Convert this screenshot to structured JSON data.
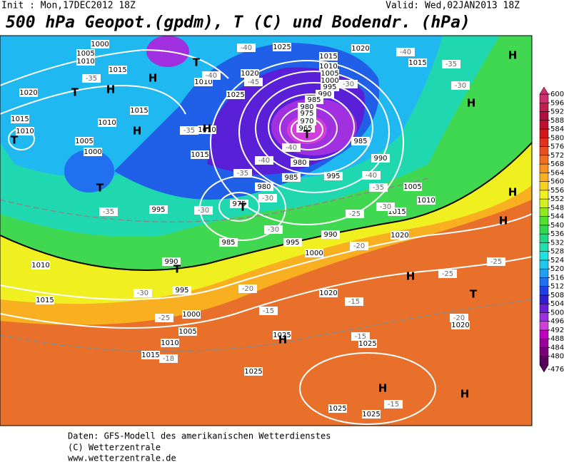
{
  "header": {
    "init": "Init : Mon,17DEC2012  18Z",
    "valid": "Valid: Wed,02JAN2013  18Z",
    "title": "500 hPa Geopot.(gpdm), T (C) und Bodendr. (hPa)"
  },
  "map": {
    "pressure_labels": [
      1000,
      1005,
      1010,
      1015,
      1010,
      1020,
      1025,
      1020,
      1025,
      1015,
      1020,
      1015,
      1010,
      1005,
      1000,
      995,
      990,
      985,
      980,
      975,
      970,
      965,
      1015,
      1010,
      1005,
      1000,
      1010,
      1015,
      1015,
      1010,
      985,
      990,
      995,
      985,
      980,
      980,
      1005,
      1010,
      1015,
      995,
      975,
      985,
      995,
      990,
      1000,
      1020,
      990,
      1010,
      1015,
      995,
      1000,
      1005,
      1010,
      1015,
      1020,
      1025,
      1025,
      1025,
      1025,
      1025,
      1020
    ],
    "temperature_labels": [
      -40,
      -35,
      -40,
      -45,
      -30,
      -40,
      -35,
      -30,
      -35,
      -40,
      -40,
      -35,
      -40,
      -35,
      -30,
      -30,
      -25,
      -30,
      -35,
      -30,
      -20,
      -20,
      -25,
      -25,
      -30,
      -15,
      -15,
      -20,
      -25,
      -18,
      -15,
      -15
    ],
    "centers": [
      "T",
      "T",
      "H",
      "H",
      "H",
      "T",
      "H",
      "T",
      "T",
      "T",
      "T",
      "H",
      "T",
      "H",
      "H",
      "H",
      "H",
      "H",
      "H",
      "H"
    ]
  },
  "colorbar": {
    "ticks": [
      476,
      480,
      484,
      488,
      492,
      496,
      500,
      504,
      508,
      512,
      516,
      520,
      524,
      528,
      532,
      536,
      540,
      544,
      548,
      552,
      556,
      560,
      564,
      568,
      572,
      576,
      580,
      584,
      588,
      592,
      596,
      600
    ],
    "colors": [
      "#5a005a",
      "#7a007a",
      "#9a009a",
      "#c000c0",
      "#d040d8",
      "#9a30e0",
      "#6a20d8",
      "#3020d0",
      "#2040e8",
      "#2070f0",
      "#20a0f0",
      "#20c8f0",
      "#20e0e0",
      "#20e0b0",
      "#20d880",
      "#30d850",
      "#50e030",
      "#90e820",
      "#d0f020",
      "#f0f020",
      "#f8d020",
      "#f8b020",
      "#f89020",
      "#f07020",
      "#e85020",
      "#e03020",
      "#d01818",
      "#c01030",
      "#b01040",
      "#c02050",
      "#d03070"
    ]
  },
  "footer": [
    "Daten: GFS-Modell des amerikanischen Wetterdienstes",
    "(C) Wetterzentrale",
    "www.wetterzentrale.de"
  ]
}
